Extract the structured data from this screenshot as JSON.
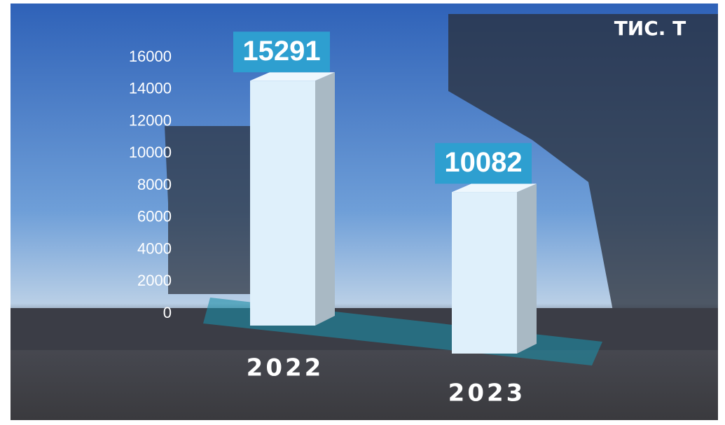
{
  "chart_data": {
    "type": "bar",
    "unit_label": "ТИС. Т",
    "categories": [
      "2022",
      "2023"
    ],
    "values": [
      15291,
      10082
    ],
    "color": "#dff0fb",
    "label_color": "#2e9fd0",
    "ylim": [
      0,
      16000
    ],
    "yticks": [
      0,
      2000,
      4000,
      6000,
      8000,
      10000,
      12000,
      14000,
      16000
    ],
    "grid": false
  }
}
